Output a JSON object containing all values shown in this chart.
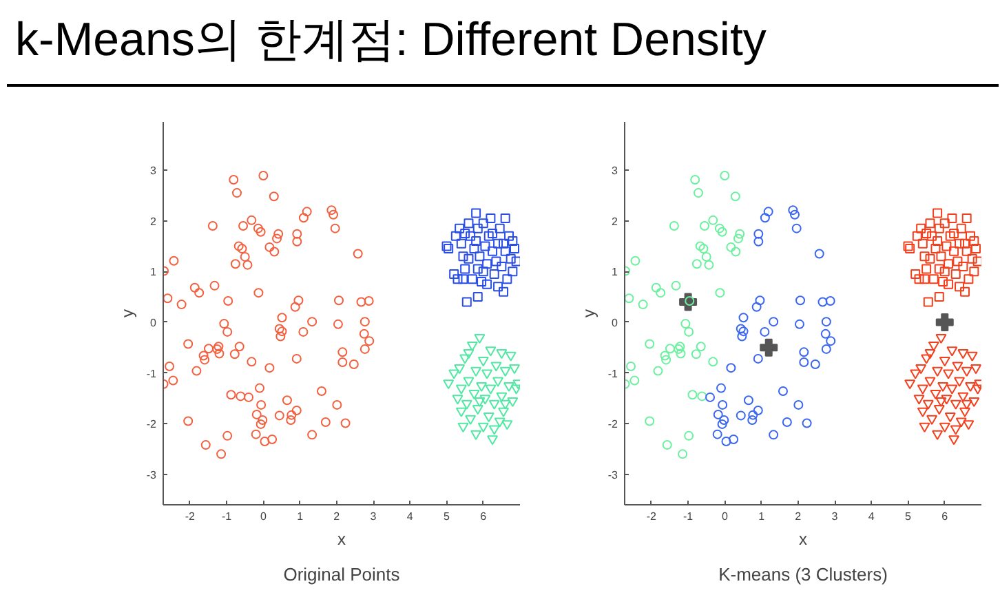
{
  "chart_data": [
    {
      "type": "scatter",
      "title": "k-Means의 한계점: Different Density",
      "xlabel": "x",
      "ylabel": "y",
      "annotations": [
        "Original Points"
      ],
      "xlim": [
        -2.73,
        7.0
      ],
      "ylim": [
        -3.6,
        3.95
      ],
      "xticks": [
        -2,
        -1,
        0,
        1,
        2,
        3,
        4,
        5,
        6
      ],
      "yticks": [
        -3,
        -2,
        -1,
        0,
        1,
        2,
        3
      ],
      "grid": false,
      "series": [
        {
          "marker": "circle",
          "color": "#f2603f",
          "x": [
            -2.71,
            -2.61,
            -2.44,
            -2.23,
            -1.87,
            -1.75,
            -1.38,
            -1.33,
            -0.96,
            -0.81,
            -0.72,
            -0.67,
            -0.58,
            -0.76,
            -0.55,
            -0.5,
            -0.43,
            -0.32,
            -0.14,
            -0.07,
            0,
            0.29,
            0.17,
            0.3,
            0.37,
            0.41,
            -0.13,
            -1.07,
            -0.98,
            -2.05,
            -1.49,
            -1.22,
            -1.26,
            -1.2,
            -1.63,
            -1.6,
            -1.82,
            -0.78,
            -0.65,
            -0.32,
            -2.56,
            -2.46,
            -2.72,
            -0.88,
            -0.62,
            -0.98,
            -1.15,
            -1.57,
            -2.05,
            0.92,
            0.92,
            1.1,
            1.19,
            1.86,
            1.91,
            1.96,
            2.58,
            0.51,
            0.44,
            0.47,
            0.51,
            0.87,
            0.96,
            1.09,
            1.33,
            2.06,
            2.04,
            2.67,
            2.88,
            2.77,
            2.75,
            2.89,
            2.77,
            2.16,
            2.16,
            2.47,
            0.17,
            0.91,
            -0.4,
            -0.1,
            -0.06,
            -0.18,
            -0.02,
            -0.07,
            -0.2,
            0.04,
            0.24,
            0.44,
            0.65,
            0.77,
            0.75,
            0.91,
            1.59,
            1.7,
            2.01,
            2.24,
            1.33
          ],
          "values": [
            1.01,
            0.47,
            1.21,
            0.35,
            0.68,
            0.58,
            1.9,
            0.72,
            0.42,
            2.81,
            2.55,
            1.5,
            1.45,
            1.15,
            1.9,
            1.29,
            1.13,
            2.01,
            1.85,
            1.78,
            2.89,
            2.48,
            1.48,
            1.39,
            1.65,
            1.74,
            0.58,
            -0.03,
            -0.19,
            -0.43,
            -0.52,
            -0.48,
            -0.53,
            -0.62,
            -0.66,
            -0.74,
            -0.96,
            -0.63,
            -0.48,
            -0.78,
            -0.87,
            -1.15,
            -1.22,
            -1.43,
            -1.46,
            -2.24,
            -2.6,
            -2.42,
            -1.95,
            1.74,
            1.59,
            2.06,
            2.18,
            2.21,
            2.12,
            1.85,
            1.35,
            0.09,
            -0.13,
            -0.28,
            -0.18,
            0.3,
            0.43,
            -0.19,
            0.01,
            0.43,
            -0.04,
            0.4,
            0.42,
            0.01,
            -0.23,
            -0.37,
            -0.53,
            -0.59,
            -0.79,
            -0.83,
            -0.9,
            -0.72,
            -1.48,
            -1.3,
            -1.63,
            -1.82,
            -1.93,
            -2.01,
            -2.21,
            -2.35,
            -2.31,
            -1.84,
            -1.54,
            -1.83,
            -1.93,
            -1.74,
            -1.36,
            -1.97,
            -1.63,
            -1.99,
            -2.22
          ]
        },
        {
          "marker": "square",
          "color": "#2b4fe6",
          "x": [
            5.0,
            5.05,
            5.2,
            5.3,
            5.25,
            5.35,
            5.4,
            5.45,
            5.5,
            5.45,
            5.55,
            5.6,
            5.65,
            5.6,
            5.7,
            5.75,
            5.8,
            5.85,
            5.8,
            5.85,
            5.85,
            5.9,
            5.95,
            6.0,
            6.05,
            6.1,
            6.1,
            6.15,
            6.2,
            6.25,
            6.3,
            6.35,
            6.4,
            6.4,
            6.45,
            6.5,
            6.55,
            6.6,
            6.6,
            6.65,
            6.7,
            6.75,
            6.8,
            6.8,
            6.85,
            6.9,
            6.55,
            5.5,
            6.0,
            6.25
          ],
          "values": [
            1.5,
            1.45,
            0.95,
            0.85,
            1.7,
            1.85,
            1.55,
            1.3,
            1.05,
            0.85,
            0.4,
            1.95,
            1.7,
            1.25,
            0.85,
            1.45,
            2.15,
            1.85,
            1.6,
            1.05,
            0.5,
            1.3,
            0.8,
            1.95,
            1.5,
            1.15,
            0.75,
            1.7,
            2.05,
            1.4,
            0.95,
            1.2,
            0.7,
            1.55,
            1.85,
            1.1,
            0.6,
            2.05,
            1.4,
            0.85,
            1.7,
            1.25,
            1.0,
            1.6,
            1.45,
            1.2,
            1.55,
            1.75,
            1.0,
            1.75
          ]
        },
        {
          "marker": "triangle",
          "color": "#52e8a4",
          "x": [
            5.05,
            5.2,
            5.3,
            5.35,
            5.4,
            5.45,
            5.5,
            5.55,
            5.6,
            5.65,
            5.7,
            5.75,
            5.8,
            5.8,
            5.85,
            5.9,
            5.95,
            6.0,
            6.0,
            6.05,
            6.1,
            6.15,
            6.2,
            6.2,
            6.25,
            6.3,
            6.35,
            6.4,
            6.45,
            6.5,
            6.5,
            6.55,
            6.6,
            6.65,
            6.7,
            6.75,
            6.8,
            6.85,
            6.9,
            6.95,
            5.6,
            6.3,
            5.9,
            6.6,
            5.4
          ],
          "values": [
            -1.2,
            -1.0,
            -1.5,
            -0.9,
            -1.3,
            -2.05,
            -0.7,
            -1.6,
            -1.15,
            -1.9,
            -0.45,
            -1.4,
            -0.95,
            -2.2,
            -1.7,
            -0.3,
            -1.25,
            -0.75,
            -2.05,
            -1.5,
            -1.0,
            -1.85,
            -0.55,
            -1.3,
            -2.3,
            -1.6,
            -0.85,
            -1.15,
            -1.95,
            -0.6,
            -1.45,
            -1.75,
            -0.95,
            -2.0,
            -1.25,
            -0.65,
            -1.55,
            -0.9,
            -1.3,
            -1.2,
            -0.6,
            -2.1,
            -1.55,
            -1.6,
            -1.75
          ]
        }
      ]
    },
    {
      "type": "scatter",
      "xlabel": "x",
      "ylabel": "y",
      "annotations": [
        "K-means (3 Clusters)"
      ],
      "xlim": [
        -2.73,
        7.0
      ],
      "ylim": [
        -3.6,
        3.95
      ],
      "xticks": [
        -2,
        -1,
        0,
        1,
        2,
        3,
        4,
        5,
        6
      ],
      "yticks": [
        -3,
        -2,
        -1,
        0,
        1,
        2,
        3
      ],
      "grid": false,
      "series": [
        {
          "marker": "circle",
          "color": "#6cf0a0",
          "x": [
            -2.71,
            -2.61,
            -2.44,
            -2.23,
            -1.87,
            -1.75,
            -1.38,
            -1.33,
            -0.96,
            -0.81,
            -0.72,
            -0.67,
            -0.58,
            -0.76,
            -0.55,
            -0.5,
            -0.43,
            -0.32,
            -0.14,
            -0.07,
            0,
            0.29,
            0.17,
            0.3,
            0.37,
            0.41,
            -0.13,
            -1.07,
            -0.98,
            -2.05,
            -1.49,
            -1.22,
            -1.26,
            -1.2,
            -1.63,
            -1.6,
            -1.82,
            -0.78,
            -0.65,
            -0.32,
            -2.56,
            -2.46,
            -2.72,
            -0.88,
            -0.62,
            -0.98,
            -1.15,
            -1.57,
            -2.05
          ],
          "values": [
            1.01,
            0.47,
            1.21,
            0.35,
            0.68,
            0.58,
            1.9,
            0.72,
            0.42,
            2.81,
            2.55,
            1.5,
            1.45,
            1.15,
            1.9,
            1.29,
            1.13,
            2.01,
            1.85,
            1.78,
            2.89,
            2.48,
            1.48,
            1.39,
            1.65,
            1.74,
            0.58,
            -0.03,
            -0.19,
            -0.43,
            -0.52,
            -0.48,
            -0.53,
            -0.62,
            -0.66,
            -0.74,
            -0.96,
            -0.63,
            -0.48,
            -0.78,
            -0.87,
            -1.15,
            -1.22,
            -1.43,
            -1.46,
            -2.24,
            -2.6,
            -2.42,
            -1.95
          ]
        },
        {
          "marker": "circle",
          "color": "#3a66f0",
          "x": [
            0.92,
            0.92,
            1.1,
            1.19,
            1.86,
            1.91,
            1.96,
            2.58,
            0.51,
            0.44,
            0.47,
            0.51,
            0.87,
            0.96,
            1.09,
            1.33,
            2.06,
            2.04,
            2.67,
            2.88,
            2.77,
            2.75,
            2.89,
            2.77,
            2.16,
            2.16,
            2.47,
            0.17,
            0.91,
            -0.4,
            -0.1,
            -0.06,
            -0.18,
            -0.02,
            -0.07,
            -0.2,
            0.04,
            0.24,
            0.44,
            0.65,
            0.77,
            0.75,
            0.91,
            1.59,
            1.7,
            2.01,
            2.24,
            1.33
          ],
          "values": [
            1.74,
            1.59,
            2.06,
            2.18,
            2.21,
            2.12,
            1.85,
            1.35,
            0.09,
            -0.13,
            -0.28,
            -0.18,
            0.3,
            0.43,
            -0.19,
            0.01,
            0.43,
            -0.04,
            0.4,
            0.42,
            0.01,
            -0.23,
            -0.37,
            -0.53,
            -0.59,
            -0.79,
            -0.83,
            -0.9,
            -0.72,
            -1.48,
            -1.3,
            -1.63,
            -1.82,
            -1.93,
            -2.01,
            -2.21,
            -2.35,
            -2.31,
            -1.84,
            -1.54,
            -1.83,
            -1.93,
            -1.74,
            -1.36,
            -1.97,
            -1.63,
            -1.99,
            -2.22
          ]
        },
        {
          "marker": "square",
          "color": "#f2401e",
          "x": [
            5.0,
            5.05,
            5.2,
            5.3,
            5.25,
            5.35,
            5.4,
            5.45,
            5.5,
            5.45,
            5.55,
            5.6,
            5.65,
            5.6,
            5.7,
            5.75,
            5.8,
            5.85,
            5.8,
            5.85,
            5.85,
            5.9,
            5.95,
            6.0,
            6.05,
            6.1,
            6.1,
            6.15,
            6.2,
            6.25,
            6.3,
            6.35,
            6.4,
            6.4,
            6.45,
            6.5,
            6.55,
            6.6,
            6.6,
            6.65,
            6.7,
            6.75,
            6.8,
            6.8,
            6.85,
            6.9,
            6.55,
            5.5,
            6.0,
            6.25
          ],
          "values": [
            1.5,
            1.45,
            0.95,
            0.85,
            1.7,
            1.85,
            1.55,
            1.3,
            1.05,
            0.85,
            0.4,
            1.95,
            1.7,
            1.25,
            0.85,
            1.45,
            2.15,
            1.85,
            1.6,
            1.05,
            0.5,
            1.3,
            0.8,
            1.95,
            1.5,
            1.15,
            0.75,
            1.7,
            2.05,
            1.4,
            0.95,
            1.2,
            0.7,
            1.55,
            1.85,
            1.1,
            0.6,
            2.05,
            1.4,
            0.85,
            1.7,
            1.25,
            1.0,
            1.6,
            1.45,
            1.2,
            1.55,
            1.75,
            1.0,
            1.75
          ]
        },
        {
          "marker": "triangle",
          "color": "#f2401e",
          "x": [
            5.05,
            5.2,
            5.3,
            5.35,
            5.4,
            5.45,
            5.5,
            5.55,
            5.6,
            5.65,
            5.7,
            5.75,
            5.8,
            5.8,
            5.85,
            5.9,
            5.95,
            6.0,
            6.0,
            6.05,
            6.1,
            6.15,
            6.2,
            6.2,
            6.25,
            6.3,
            6.35,
            6.4,
            6.45,
            6.5,
            6.5,
            6.55,
            6.6,
            6.65,
            6.7,
            6.75,
            6.8,
            6.85,
            6.9,
            6.95,
            5.6,
            6.3,
            5.9,
            6.6,
            5.4
          ],
          "values": [
            -1.2,
            -1.0,
            -1.5,
            -0.9,
            -1.3,
            -2.05,
            -0.7,
            -1.6,
            -1.15,
            -1.9,
            -0.45,
            -1.4,
            -0.95,
            -2.2,
            -1.7,
            -0.3,
            -1.25,
            -0.75,
            -2.05,
            -1.5,
            -1.0,
            -1.85,
            -0.55,
            -1.3,
            -2.3,
            -1.6,
            -0.85,
            -1.15,
            -1.95,
            -0.6,
            -1.45,
            -1.75,
            -0.95,
            -2.0,
            -1.25,
            -0.65,
            -1.55,
            -0.9,
            -1.3,
            -1.2,
            -0.6,
            -2.1,
            -1.55,
            -1.6,
            -1.75
          ]
        },
        {
          "marker": "cross",
          "color": "#555555",
          "x": [
            -1.0,
            1.2,
            6.0
          ],
          "values": [
            0.4,
            -0.5,
            0.0
          ]
        }
      ]
    }
  ]
}
